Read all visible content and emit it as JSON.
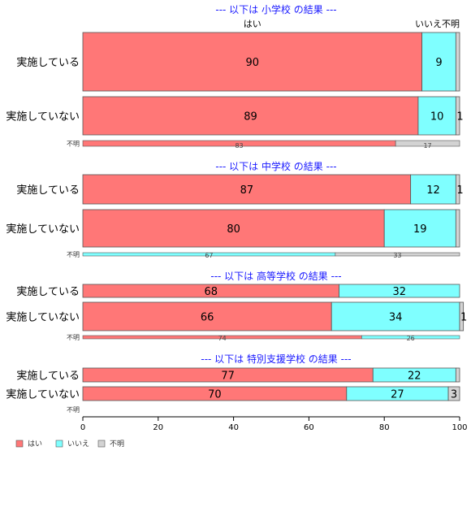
{
  "colors": {
    "hai": "#ff7777",
    "iie": "#7fffff",
    "fumei": "#d3d3d3"
  },
  "chart_data": {
    "type": "bar",
    "orientation": "horizontal-stacked-percent",
    "xlim": [
      0,
      100
    ],
    "xticks": [
      "0",
      "20",
      "40",
      "60",
      "80",
      "100"
    ],
    "column_headers": {
      "hai": "はい",
      "iie_fumei": "いいえ不明"
    },
    "legend": {
      "placement": "bottom-left",
      "entries": [
        "はい",
        "いいえ",
        "不明"
      ]
    },
    "panels": [
      {
        "title": "--- 以下は 小学校 の結果 ---",
        "rows": [
          {
            "label": "実施している",
            "hai": 90,
            "iie": 9,
            "fumei": 1,
            "labels": [
              "90",
              "9",
              ""
            ]
          },
          {
            "label": "実施していない",
            "hai": 89,
            "iie": 10,
            "fumei": 1,
            "labels": [
              "89",
              "10",
              "1"
            ]
          },
          {
            "label": "不明",
            "thin": true,
            "hai": 83,
            "iie": 0,
            "fumei": 17,
            "labels": [
              "83",
              "",
              "17"
            ]
          }
        ]
      },
      {
        "title": "--- 以下は 中学校 の結果 ---",
        "rows": [
          {
            "label": "実施している",
            "hai": 87,
            "iie": 12,
            "fumei": 1,
            "labels": [
              "87",
              "12",
              "1"
            ]
          },
          {
            "label": "実施していない",
            "hai": 80,
            "iie": 19,
            "fumei": 1,
            "labels": [
              "80",
              "19",
              ""
            ]
          },
          {
            "label": "不明",
            "thin": true,
            "hai": 0,
            "iie": 67,
            "fumei": 33,
            "labels": [
              "",
              "67",
              "33"
            ]
          }
        ]
      },
      {
        "title": "--- 以下は 高等学校 の結果 ---",
        "rows": [
          {
            "label": "実施している",
            "hai": 68,
            "iie": 32,
            "fumei": 0,
            "labels": [
              "68",
              "32",
              ""
            ]
          },
          {
            "label": "実施していない",
            "hai": 66,
            "iie": 34,
            "fumei": 1,
            "labels": [
              "66",
              "34",
              "1"
            ]
          },
          {
            "label": "不明",
            "thin": true,
            "hai": 74,
            "iie": 26,
            "fumei": 0,
            "labels": [
              "74",
              "26",
              ""
            ]
          }
        ]
      },
      {
        "title": "--- 以下は 特別支援学校 の結果 ---",
        "rows": [
          {
            "label": "実施している",
            "hai": 77,
            "iie": 22,
            "fumei": 1,
            "labels": [
              "77",
              "22",
              ""
            ]
          },
          {
            "label": "実施していない",
            "hai": 70,
            "iie": 27,
            "fumei": 3,
            "labels": [
              "70",
              "27",
              "3"
            ]
          },
          {
            "label": "不明",
            "thin": true,
            "empty": true,
            "hai": 0,
            "iie": 0,
            "fumei": 0,
            "labels": [
              "",
              "",
              ""
            ]
          }
        ]
      }
    ]
  }
}
